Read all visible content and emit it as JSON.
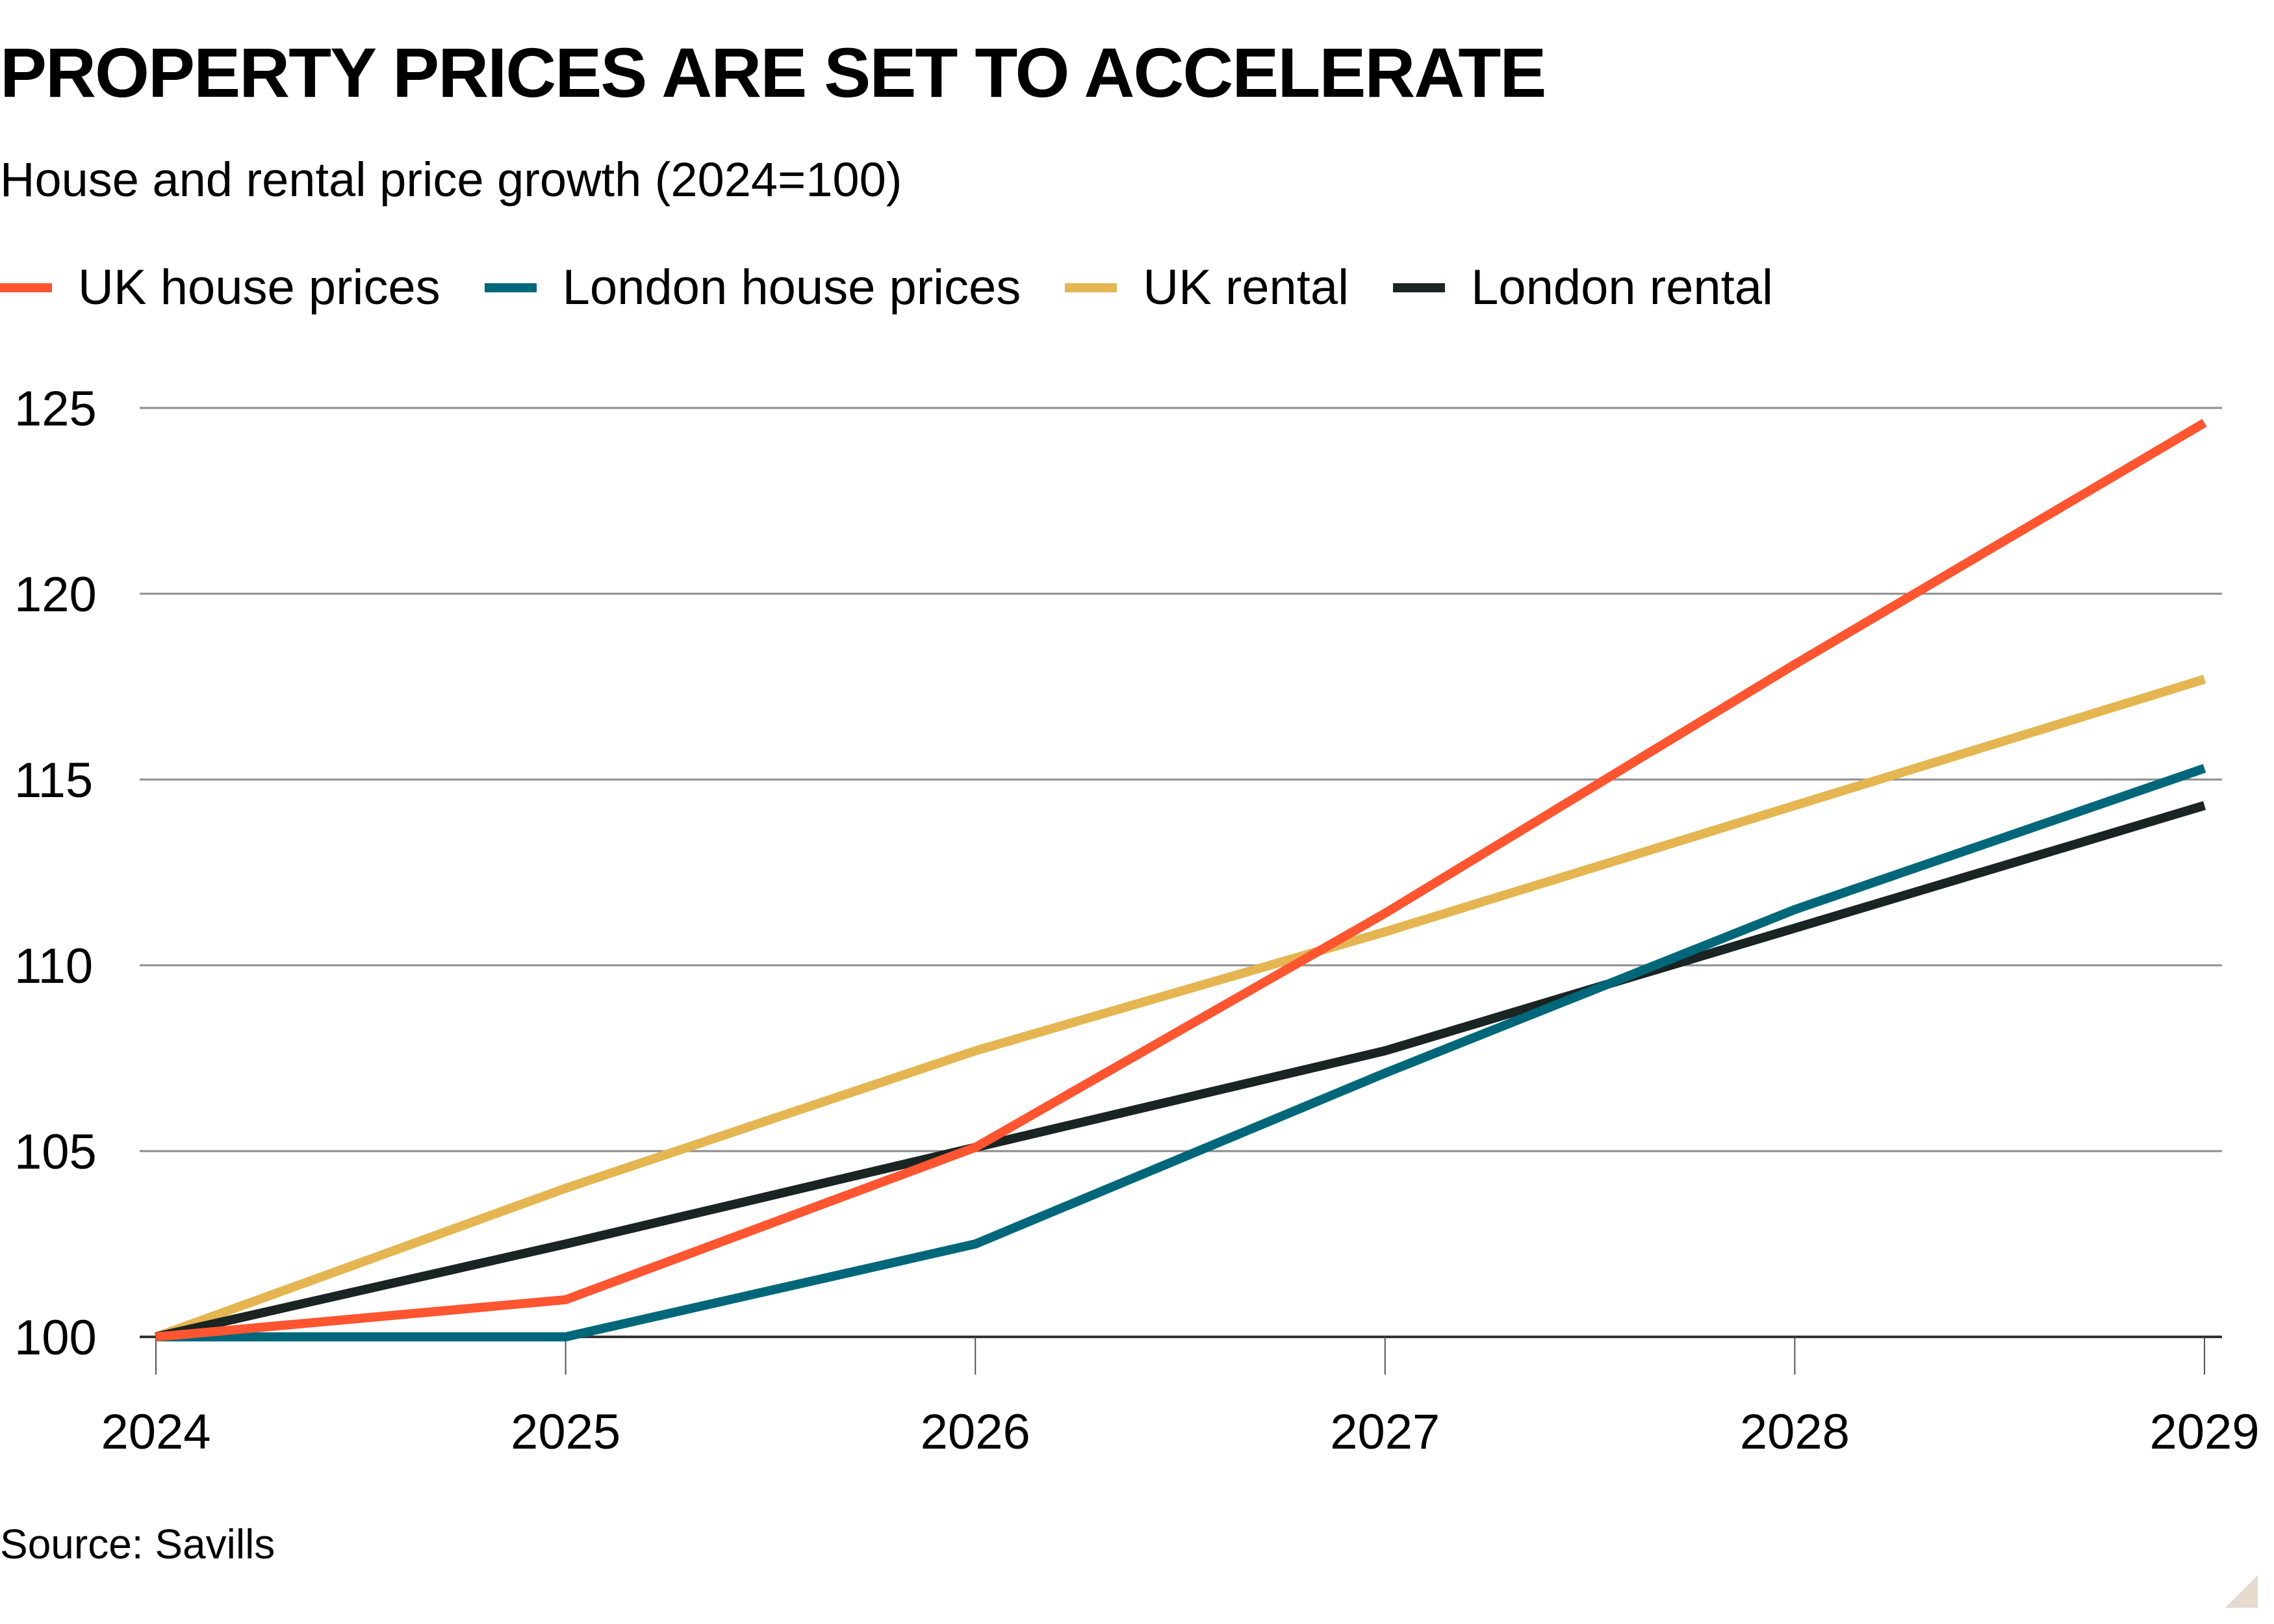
{
  "header": {
    "title": "PROPERTY PRICES ARE SET TO ACCELERATE",
    "subtitle": "House and rental price growth (2024=100)"
  },
  "legend": {
    "items": [
      {
        "label": "UK house prices",
        "color": "#ff5530"
      },
      {
        "label": "London house prices",
        "color": "#00677a"
      },
      {
        "label": "UK rental",
        "color": "#e5b552"
      },
      {
        "label": "London rental",
        "color": "#1a2422"
      }
    ]
  },
  "footer": {
    "source": "Source: Savills"
  },
  "chart_data": {
    "type": "line",
    "title": "PROPERTY PRICES ARE SET TO ACCELERATE",
    "subtitle": "House and rental price growth (2024=100)",
    "xlabel": "",
    "ylabel": "",
    "x": [
      "2024",
      "2025",
      "2026",
      "2027",
      "2028",
      "2029"
    ],
    "yticks": [
      100,
      105,
      110,
      115,
      120,
      125
    ],
    "ylim": [
      100,
      125
    ],
    "grid": true,
    "legend_position": "top",
    "series": [
      {
        "name": "UK house prices",
        "color": "#ff5530",
        "values": [
          100,
          101.0,
          105.1,
          111.4,
          118.1,
          124.6
        ]
      },
      {
        "name": "London house prices",
        "color": "#00677a",
        "values": [
          100,
          100.0,
          102.5,
          107.1,
          111.5,
          115.3
        ]
      },
      {
        "name": "UK rental",
        "color": "#e5b552",
        "values": [
          100,
          104.0,
          107.7,
          110.9,
          114.3,
          117.7
        ]
      },
      {
        "name": "London rental",
        "color": "#1a2422",
        "values": [
          100,
          102.5,
          105.1,
          107.7,
          111.0,
          114.3
        ]
      }
    ],
    "annotations": [],
    "source": "Source: Savills"
  }
}
